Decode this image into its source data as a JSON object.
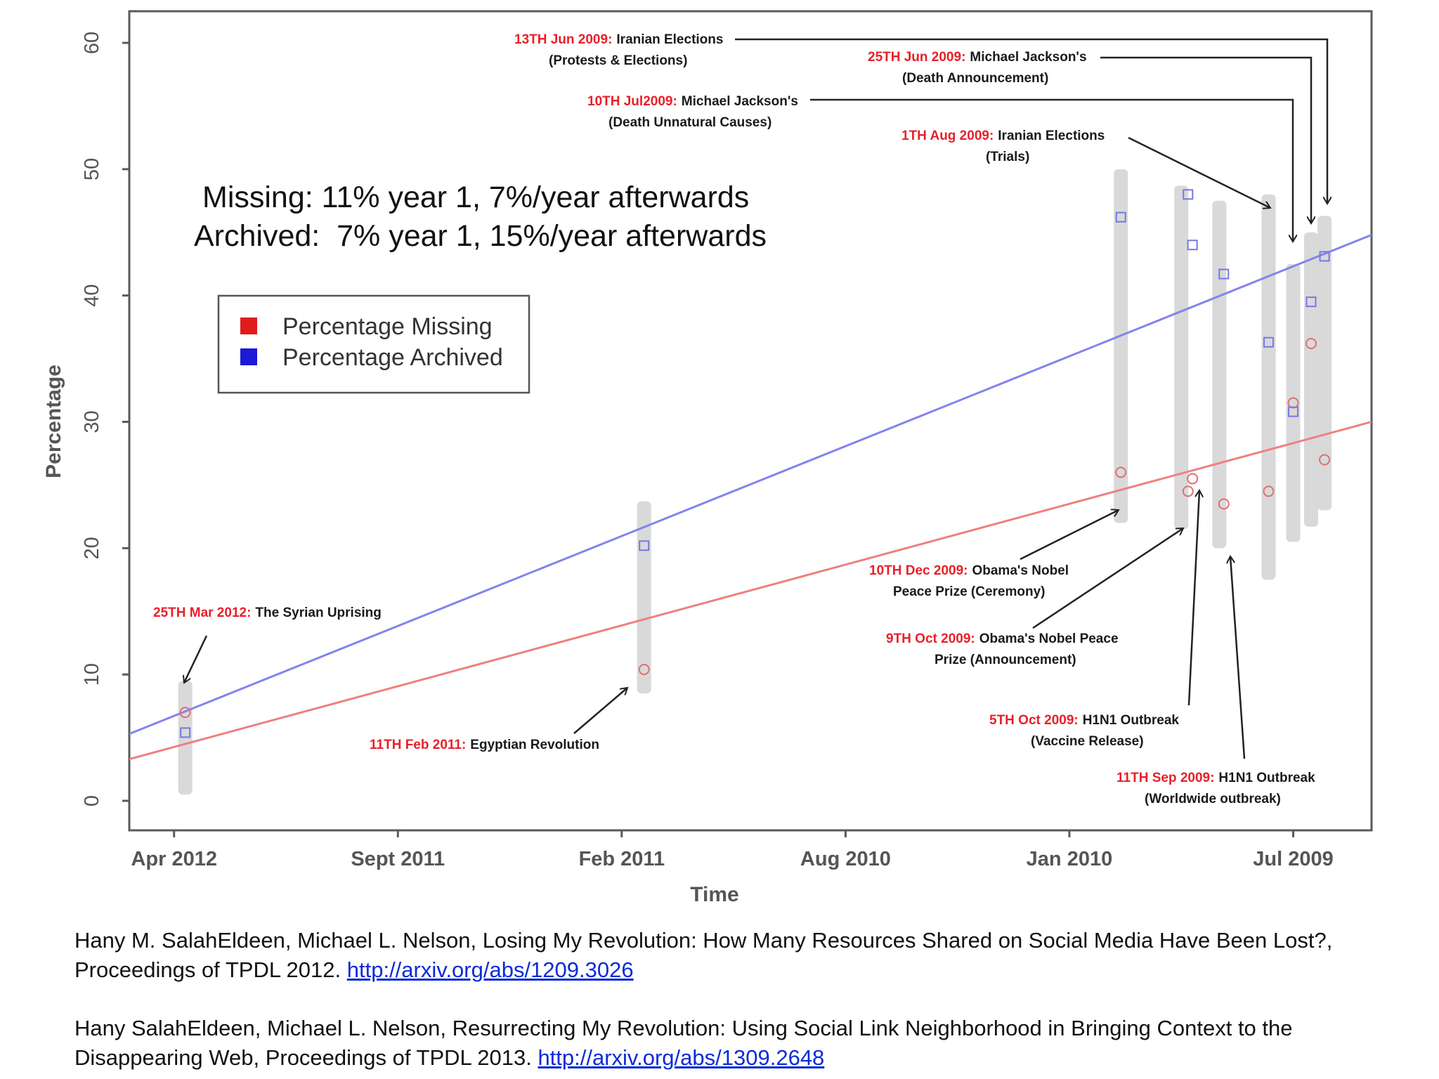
{
  "chart_data": {
    "type": "scatter",
    "xlabel": "Time",
    "ylabel": "Percentage",
    "ylim": [
      0,
      60
    ],
    "x_ticks": [
      "Apr 2012",
      "Sept 2011",
      "Feb 2011",
      "Aug 2010",
      "Jan 2010",
      "Jul 2009"
    ],
    "y_ticks": [
      "0",
      "10",
      "20",
      "30",
      "40",
      "50",
      "60"
    ],
    "summary": [
      "Missing: 11% year 1,  7%/year afterwards",
      "Archived:  7% year 1, 15%/year afterwards"
    ],
    "legend": {
      "position": "upper-left",
      "entries": [
        {
          "label": "Percentage Missing",
          "color": "#e01b1b"
        },
        {
          "label": "Percentage Archived",
          "color": "#1a1ad8"
        }
      ]
    },
    "colors": {
      "missing": "#e07070",
      "archived": "#7777e6",
      "missing_line": "#ef8080",
      "archived_line": "#8383ee",
      "range_bar": "#d9d9d9",
      "event_date": "#e8202a",
      "event_text": "#1a1a1a"
    },
    "x_domain": [
      -0.2,
      5.35
    ],
    "trend_lines": {
      "missing": {
        "x": [
          -0.2,
          5.35
        ],
        "y": [
          3.3,
          30.0
        ]
      },
      "archived": {
        "x": [
          -0.2,
          5.35
        ],
        "y": [
          5.3,
          44.8
        ]
      }
    },
    "series": [
      {
        "name": "Percentage Missing",
        "points": [
          {
            "x": 0.05,
            "y": 7.0
          },
          {
            "x": 2.1,
            "y": 10.4
          },
          {
            "x": 4.23,
            "y": 26.0
          },
          {
            "x": 4.53,
            "y": 24.5
          },
          {
            "x": 4.55,
            "y": 25.5
          },
          {
            "x": 4.69,
            "y": 23.5
          },
          {
            "x": 4.89,
            "y": 24.5
          },
          {
            "x": 5.0,
            "y": 31.5
          },
          {
            "x": 5.08,
            "y": 36.2
          },
          {
            "x": 5.14,
            "y": 27.0
          }
        ]
      },
      {
        "name": "Percentage Archived",
        "points": [
          {
            "x": 0.05,
            "y": 5.4
          },
          {
            "x": 2.1,
            "y": 20.2
          },
          {
            "x": 4.23,
            "y": 46.2
          },
          {
            "x": 4.53,
            "y": 48.0
          },
          {
            "x": 4.55,
            "y": 44.0
          },
          {
            "x": 4.69,
            "y": 41.7
          },
          {
            "x": 4.89,
            "y": 36.3
          },
          {
            "x": 5.0,
            "y": 30.8
          },
          {
            "x": 5.08,
            "y": 39.5
          },
          {
            "x": 5.14,
            "y": 43.1
          }
        ]
      }
    ],
    "ranges": [
      {
        "x": 0.05,
        "y": [
          0.5,
          9.5
        ]
      },
      {
        "x": 2.1,
        "y": [
          8.5,
          23.7
        ]
      },
      {
        "x": 4.23,
        "y": [
          22.0,
          50.0
        ]
      },
      {
        "x": 4.5,
        "y": [
          21.5,
          48.7
        ]
      },
      {
        "x": 4.67,
        "y": [
          20.0,
          47.5
        ]
      },
      {
        "x": 4.89,
        "y": [
          17.5,
          48.0
        ]
      },
      {
        "x": 5.0,
        "y": [
          20.5,
          42.5
        ]
      },
      {
        "x": 5.08,
        "y": [
          21.7,
          45.0
        ]
      },
      {
        "x": 5.14,
        "y": [
          23.0,
          46.3
        ]
      }
    ],
    "annotations": [
      {
        "date": "13TH Jun 2009:",
        "title": "Iranian Elections",
        "sub": "(Protests & Elections)"
      },
      {
        "date": "25TH Jun 2009:",
        "title": "Michael Jackson's",
        "sub": "(Death Announcement)"
      },
      {
        "date": "10TH Jul2009:",
        "title": "Michael Jackson's",
        "sub": "(Death Unnatural Causes)"
      },
      {
        "date": "1TH Aug 2009:",
        "title": "Iranian Elections",
        "sub": "(Trials)"
      },
      {
        "date": "25TH Mar 2012:",
        "title": "The Syrian Uprising",
        "sub": ""
      },
      {
        "date": "11TH Feb 2011:",
        "title": "Egyptian Revolution",
        "sub": ""
      },
      {
        "date": "10TH Dec 2009:",
        "title": "Obama's Nobel",
        "sub": "Peace Prize (Ceremony)"
      },
      {
        "date": "9TH Oct 2009:",
        "title": "Obama's Nobel Peace",
        "sub": "Prize (Announcement)"
      },
      {
        "date": "5TH Oct 2009:",
        "title": "H1N1 Outbreak",
        "sub": "(Vaccine Release)"
      },
      {
        "date": "11TH Sep 2009:",
        "title": "H1N1 Outbreak",
        "sub": "(Worldwide outbreak)"
      }
    ]
  },
  "references": [
    {
      "text": "Hany M. SalahEldeen, Michael L. Nelson, Losing My Revolution: How Many Resources Shared on Social Media Have Been Lost?, Proceedings of TPDL 2012. ",
      "link": "http://arxiv.org/abs/1209.3026"
    },
    {
      "text": "Hany SalahEldeen, Michael L. Nelson, Resurrecting My Revolution: Using Social Link Neighborhood in Bringing Context to the Disappearing Web, Proceedings of TPDL 2013. ",
      "link": "http://arxiv.org/abs/1309.2648"
    }
  ]
}
